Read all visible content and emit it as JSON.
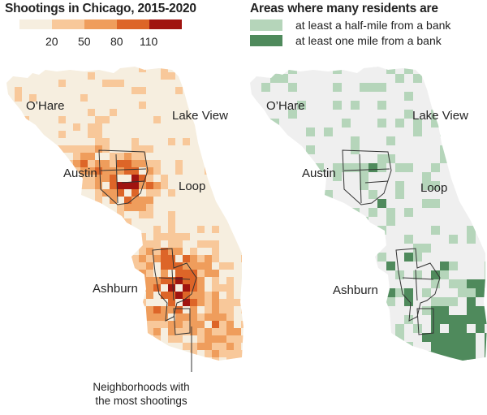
{
  "left_panel": {
    "title": "Shootings in Chicago, 2015-2020",
    "scale": {
      "colors": [
        "#f6eedf",
        "#f8c89a",
        "#ef9d5c",
        "#dd6528",
        "#a01410"
      ],
      "ticks": [
        "20",
        "50",
        "80",
        "110"
      ]
    },
    "labels": {
      "ohare": "O’Hare",
      "lakeview": "Lake View",
      "austin": "Austin",
      "loop": "Loop",
      "ashburn": "Ashburn"
    },
    "annotation": {
      "line1": "Neighborhoods with",
      "line2": "the most shootings"
    }
  },
  "right_panel": {
    "title": "Areas where many residents are",
    "legend": [
      {
        "label": "at least a half-mile from a bank",
        "color": "#b5d5ba"
      },
      {
        "label": "at least one mile from a bank",
        "color": "#4f8a5c"
      }
    ],
    "base_color": "#efefef",
    "labels": {
      "ohare": "O’Hare",
      "lakeview": "Lake View",
      "austin": "Austin",
      "loop": "Loop",
      "ashburn": "Ashburn"
    }
  }
}
